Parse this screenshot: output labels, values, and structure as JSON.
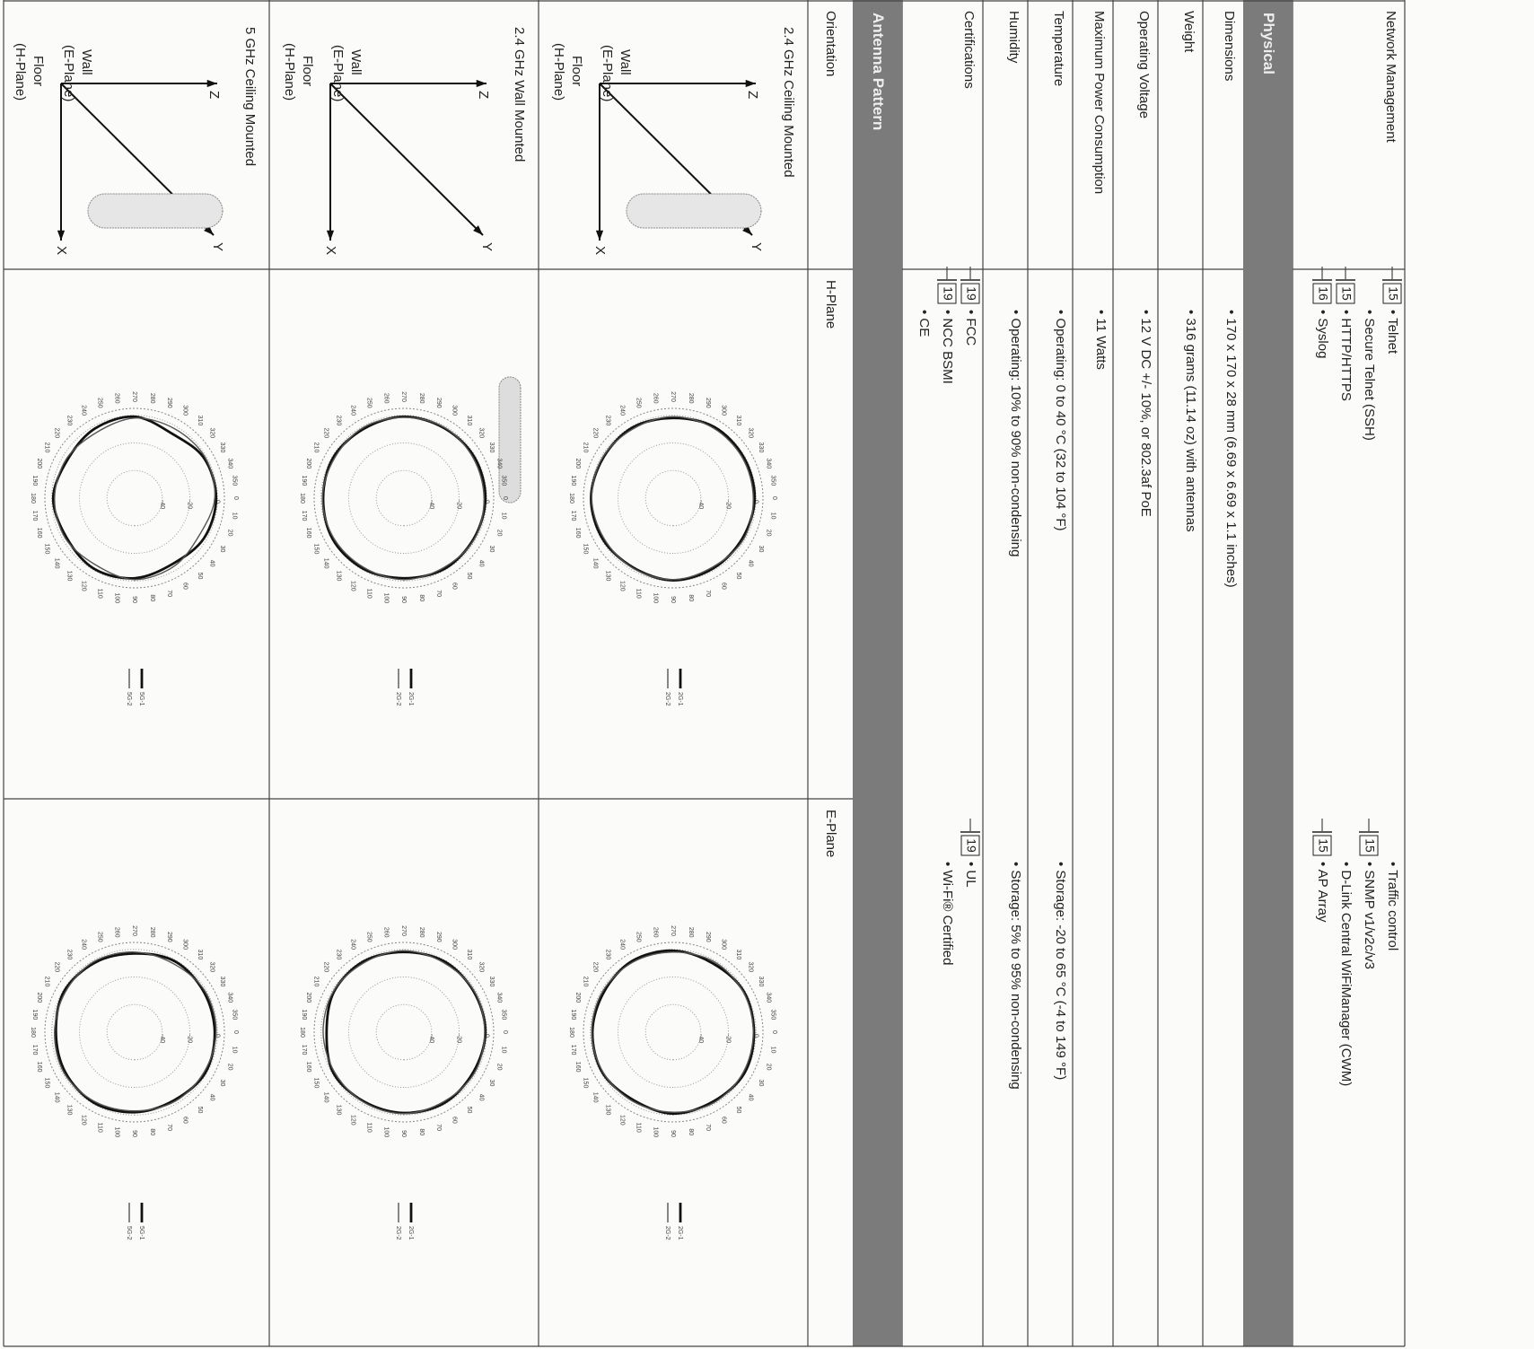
{
  "network_management": {
    "label": "Network Management",
    "left": [
      {
        "text": "• Telnet",
        "ref": "15"
      },
      {
        "text": "• Secure Telnet (SSH)"
      },
      {
        "text": "• HTTP/HTTPS",
        "ref": "15"
      },
      {
        "text": "• Syslog",
        "ref": "16"
      }
    ],
    "right": [
      {
        "text": "• Traffic control"
      },
      {
        "text": "• SNMP v1/v2c/v3",
        "ref": "15"
      },
      {
        "text": "• D-Link Central WiFiManager (CWM)"
      },
      {
        "text": "• AP Array",
        "ref": "15"
      }
    ]
  },
  "physical": {
    "title": "Physical",
    "rows": [
      {
        "label": "Dimensions",
        "left": [
          {
            "text": "• 170 x 170 x 28 mm (6.69 x 6.69 x 1.1 inches)"
          }
        ],
        "right": []
      },
      {
        "label": "Weight",
        "left": [
          {
            "text": "• 316 grams (11.14 oz) with antennas"
          }
        ],
        "right": []
      },
      {
        "label": "Operating Voltage",
        "left": [
          {
            "text": "• 12 V DC +/- 10%, or 802.3af PoE"
          }
        ],
        "right": []
      },
      {
        "label": "Maximum Power Consumption",
        "left": [
          {
            "text": "• 11 Watts"
          }
        ],
        "right": []
      },
      {
        "label": "Temperature",
        "left": [
          {
            "text": "• Operating: 0 to 40 °C (32 to 104 °F)"
          }
        ],
        "right": [
          {
            "text": "• Storage: -20 to 65 °C (-4 to 149 °F)"
          }
        ]
      },
      {
        "label": "Humidity",
        "left": [
          {
            "text": "• Operating: 10% to 90% non-condensing"
          }
        ],
        "right": [
          {
            "text": "• Storage: 5% to 95% non-condensing"
          }
        ]
      },
      {
        "label": "Certifications",
        "left": [
          {
            "text": "• FCC",
            "ref": "19"
          },
          {
            "text": "• NCC BSMI",
            "ref": "19"
          },
          {
            "text": "• CE"
          }
        ],
        "right": [
          {
            "text": "• UL",
            "ref": "19"
          },
          {
            "text": "• Wi-Fi® Certified"
          }
        ]
      }
    ]
  },
  "antenna_pattern": {
    "title": "Antenna Pattern",
    "headers": [
      "Orientation",
      "H-Plane",
      "E-Plane"
    ],
    "diagram_labels": {
      "wall": "Wall",
      "e_plane": "(E-Plane)",
      "floor": "Floor",
      "h_plane": "(H-Plane)",
      "z": "Z",
      "y": "Y",
      "x": "X"
    },
    "angle_labels": [
      0,
      10,
      20,
      30,
      40,
      50,
      60,
      70,
      80,
      90,
      100,
      110,
      120,
      130,
      140,
      150,
      160,
      170,
      180,
      190,
      200,
      210,
      220,
      230,
      240,
      250,
      260,
      270,
      280,
      290,
      300,
      310,
      320,
      330,
      340,
      350
    ],
    "ring_labels": [
      0,
      -20,
      -40
    ],
    "rlim": [
      -60,
      5
    ],
    "theta": [
      0,
      30,
      60,
      90,
      120,
      150,
      180,
      210,
      240,
      270,
      300,
      330
    ],
    "rows": [
      {
        "orientation": "2.4 GHz Ceiling Mounted",
        "mount": "ceiling",
        "h_plane": {
          "series": [
            {
              "name": "2G-1",
              "color": "#111111",
              "values": [
                -1,
                -2,
                -1.5,
                -0.5,
                -2,
                -1,
                -0.5,
                -1.5,
                -1,
                -2,
                -0.5,
                -1
              ]
            },
            {
              "name": "2G-2",
              "color": "#555555",
              "values": [
                -2,
                -1,
                -2.5,
                -1,
                -1.5,
                -2,
                -1,
                -1,
                -2,
                -1,
                -1.5,
                -2
              ]
            }
          ]
        },
        "e_plane": {
          "series": [
            {
              "name": "2G-1",
              "color": "#111111",
              "values": [
                -1.5,
                -0.5,
                -2,
                -1,
                -3,
                -1,
                -1.5,
                -2,
                -0.5,
                -1,
                -2.5,
                -1
              ]
            },
            {
              "name": "2G-2",
              "color": "#555555",
              "values": [
                -2,
                -1.5,
                -1,
                -2,
                -2,
                -1.5,
                -1,
                -1,
                -1.5,
                -2,
                -1,
                -1.5
              ]
            }
          ]
        }
      },
      {
        "orientation": "2.4 GHz Wall Mounted",
        "mount": "wall",
        "h_plane": {
          "series": [
            {
              "name": "2G-1",
              "color": "#111111",
              "values": [
                -1,
                -1.5,
                -1,
                -2,
                -1,
                -0.5,
                -1.5,
                -1,
                -2,
                -1,
                -1.5,
                -1
              ]
            },
            {
              "name": "2G-2",
              "color": "#555555",
              "values": [
                -2,
                -1,
                -2,
                -1,
                -2,
                -1.5,
                -1,
                -2,
                -1,
                -1.5,
                -1,
                -2
              ]
            }
          ]
        },
        "e_plane": {
          "series": [
            {
              "name": "2G-1",
              "color": "#111111",
              "values": [
                -1,
                -2,
                -1,
                -1.5,
                -2,
                -1,
                -4,
                -1.5,
                -1,
                -2,
                -1,
                -1.5
              ]
            },
            {
              "name": "2G-2",
              "color": "#555555",
              "values": [
                -1.5,
                -1,
                -2,
                -1,
                -1.5,
                -2,
                -1.5,
                -1,
                -2,
                -1,
                -2,
                -1
              ]
            }
          ]
        }
      },
      {
        "orientation": "5 GHz Ceiling Mounted",
        "mount": "ceiling",
        "h_plane": {
          "series": [
            {
              "name": "5G-1",
              "color": "#111111",
              "values": [
                -1,
                -2,
                -5,
                -2,
                -1,
                -3,
                -1,
                -4,
                -2,
                -1,
                -6,
                -2
              ]
            },
            {
              "name": "5G-2",
              "color": "#555555",
              "values": [
                -2,
                -6,
                -3,
                -1,
                -4,
                -2,
                -2,
                -3,
                -5,
                -2,
                -2,
                -1
              ]
            }
          ]
        },
        "e_plane": {
          "series": [
            {
              "name": "5G-1",
              "color": "#111111",
              "values": [
                -2,
                -1,
                -3,
                -2,
                -1,
                -2,
                -3,
                -1,
                -2,
                -3,
                -1,
                -2
              ]
            },
            {
              "name": "5G-2",
              "color": "#555555",
              "values": [
                -1,
                -2,
                -2,
                -3,
                -2,
                -1,
                -2,
                -2,
                -1,
                -2,
                -3,
                -1
              ]
            }
          ]
        }
      }
    ]
  }
}
